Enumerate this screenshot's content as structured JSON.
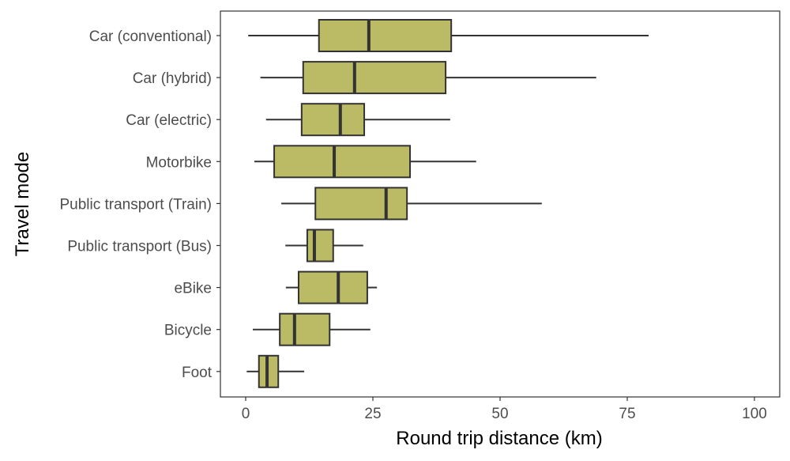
{
  "chart_data": {
    "type": "boxplot",
    "orientation": "horizontal",
    "title": "",
    "xlabel": "Round trip distance (km)",
    "ylabel": "Travel mode",
    "xlim": [
      0,
      100
    ],
    "xticks": [
      0,
      25,
      50,
      75,
      100
    ],
    "grid": false,
    "legend": null,
    "box_fill": "#BBBA65",
    "box_stroke": "#333333",
    "categories": [
      "Car (conventional)",
      "Car (hybrid)",
      "Car (electric)",
      "Motorbike",
      "Public transport (Train)",
      "Public transport (Bus)",
      "eBike",
      "Bicycle",
      "Foot"
    ],
    "series": [
      {
        "name": "Car (conventional)",
        "whisker_low": 0.5,
        "q1": 14.4,
        "median": 24.2,
        "q3": 40.4,
        "whisker_high": 79.2
      },
      {
        "name": "Car (hybrid)",
        "whisker_low": 2.9,
        "q1": 11.3,
        "median": 21.4,
        "q3": 39.3,
        "whisker_high": 68.9
      },
      {
        "name": "Car (electric)",
        "whisker_low": 4.0,
        "q1": 11.0,
        "median": 18.6,
        "q3": 23.3,
        "whisker_high": 40.2
      },
      {
        "name": "Motorbike",
        "whisker_low": 1.7,
        "q1": 5.6,
        "median": 17.4,
        "q3": 32.3,
        "whisker_high": 45.3
      },
      {
        "name": "Public transport (Train)",
        "whisker_low": 7.0,
        "q1": 13.7,
        "median": 27.6,
        "q3": 31.7,
        "whisker_high": 58.2
      },
      {
        "name": "Public transport (Bus)",
        "whisker_low": 7.8,
        "q1": 12.1,
        "median": 13.5,
        "q3": 17.2,
        "whisker_high": 23.1
      },
      {
        "name": "eBike",
        "whisker_low": 7.9,
        "q1": 10.4,
        "median": 18.2,
        "q3": 23.9,
        "whisker_high": 25.8
      },
      {
        "name": "Bicycle",
        "whisker_low": 1.4,
        "q1": 6.7,
        "median": 9.6,
        "q3": 16.5,
        "whisker_high": 24.5
      },
      {
        "name": "Foot",
        "whisker_low": 0.2,
        "q1": 2.6,
        "median": 4.2,
        "q3": 6.4,
        "whisker_high": 11.5
      }
    ]
  }
}
